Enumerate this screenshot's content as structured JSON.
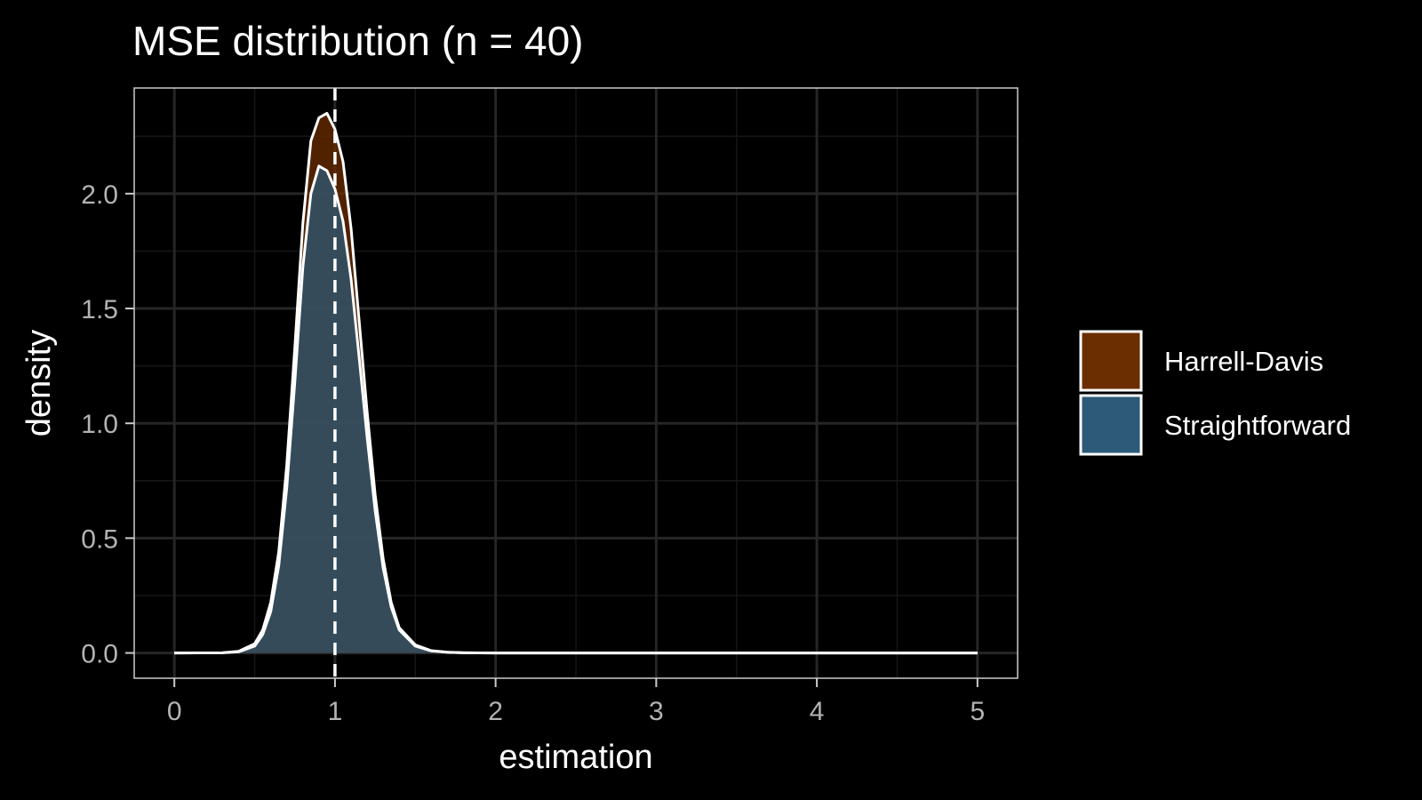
{
  "chart_data": {
    "type": "area",
    "title": "MSE distribution (n = 40)",
    "xlabel": "estimation",
    "ylabel": "density",
    "xlim": [
      -0.25,
      5.25
    ],
    "ylim": [
      -0.11,
      2.46
    ],
    "x_ticks": [
      0,
      1,
      2,
      3,
      4,
      5
    ],
    "x_tick_labels": [
      "0",
      "1",
      "2",
      "3",
      "4",
      "5"
    ],
    "y_ticks": [
      0.0,
      0.5,
      1.0,
      1.5,
      2.0
    ],
    "y_tick_labels": [
      "0.0",
      "0.5",
      "1.0",
      "1.5",
      "2.0"
    ],
    "reference_line": {
      "x": 1,
      "style": "dashed",
      "color": "#ffffff"
    },
    "grid": true,
    "legend": {
      "position": "right"
    },
    "colors": {
      "background": "#000000",
      "panel_border": "#cccccc",
      "grid_major": "#262626",
      "grid_minor": "#161616",
      "curve_outline": "#ffffff"
    },
    "series": [
      {
        "name": "Harrell-Davis",
        "fill": "#6b2e00",
        "x": [
          0,
          0.3,
          0.4,
          0.5,
          0.55,
          0.6,
          0.65,
          0.7,
          0.75,
          0.8,
          0.85,
          0.9,
          0.95,
          1.0,
          1.05,
          1.1,
          1.15,
          1.2,
          1.25,
          1.3,
          1.35,
          1.4,
          1.5,
          1.6,
          1.7,
          1.8,
          2.0,
          3.0,
          4.0,
          5.0
        ],
        "y": [
          0,
          0.001,
          0.007,
          0.04,
          0.1,
          0.22,
          0.44,
          0.82,
          1.33,
          1.87,
          2.23,
          2.33,
          2.35,
          2.28,
          2.14,
          1.85,
          1.45,
          1.05,
          0.69,
          0.41,
          0.22,
          0.11,
          0.035,
          0.01,
          0.003,
          0.001,
          0,
          0,
          0,
          0
        ]
      },
      {
        "name": "Straightforward",
        "fill": "#2c5a78",
        "x": [
          0,
          0.3,
          0.4,
          0.5,
          0.55,
          0.6,
          0.65,
          0.7,
          0.75,
          0.8,
          0.85,
          0.9,
          0.95,
          1.0,
          1.05,
          1.1,
          1.15,
          1.2,
          1.25,
          1.3,
          1.35,
          1.4,
          1.5,
          1.6,
          1.7,
          1.8,
          2.0,
          3.0,
          4.0,
          5.0
        ],
        "y": [
          0,
          0.001,
          0.005,
          0.03,
          0.08,
          0.18,
          0.38,
          0.72,
          1.18,
          1.68,
          2.0,
          2.12,
          2.1,
          2.02,
          1.88,
          1.63,
          1.29,
          0.94,
          0.62,
          0.37,
          0.2,
          0.1,
          0.03,
          0.009,
          0.003,
          0.001,
          0,
          0,
          0,
          0
        ]
      }
    ]
  }
}
